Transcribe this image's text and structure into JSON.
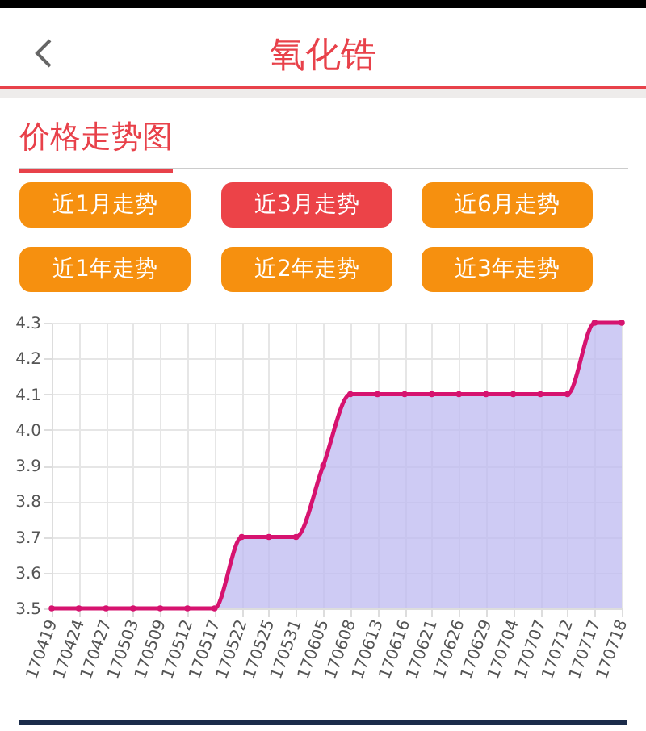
{
  "chart_data": {
    "type": "area",
    "title": "氧化锆",
    "subtitle": "价格走势图",
    "annotations": [
      "近1月走势",
      "近3月走势",
      "近6月走势",
      "近1年走势",
      "近2年走势",
      "近3年走势"
    ],
    "categories": [
      "170419",
      "170424",
      "170427",
      "170503",
      "170509",
      "170512",
      "170517",
      "170522",
      "170525",
      "170531",
      "170605",
      "170608",
      "170613",
      "170616",
      "170621",
      "170626",
      "170629",
      "170704",
      "170707",
      "170712",
      "170717",
      "170718"
    ],
    "series": [
      {
        "color": "#d6136f",
        "values": [
          3.5,
          3.5,
          3.5,
          3.5,
          3.5,
          3.5,
          3.5,
          3.7,
          3.7,
          3.7,
          3.9,
          4.1,
          4.1,
          4.1,
          4.1,
          4.1,
          4.1,
          4.1,
          4.1,
          4.1,
          4.3,
          4.3
        ]
      }
    ],
    "ylim": [
      3.5,
      4.3
    ],
    "yticks": [
      3.5,
      3.6,
      3.7,
      3.8,
      3.9,
      {
        "value": 4,
        "label": "4.0"
      },
      4.1,
      4.2,
      4.3
    ],
    "grid": true,
    "marker": "circle"
  }
}
